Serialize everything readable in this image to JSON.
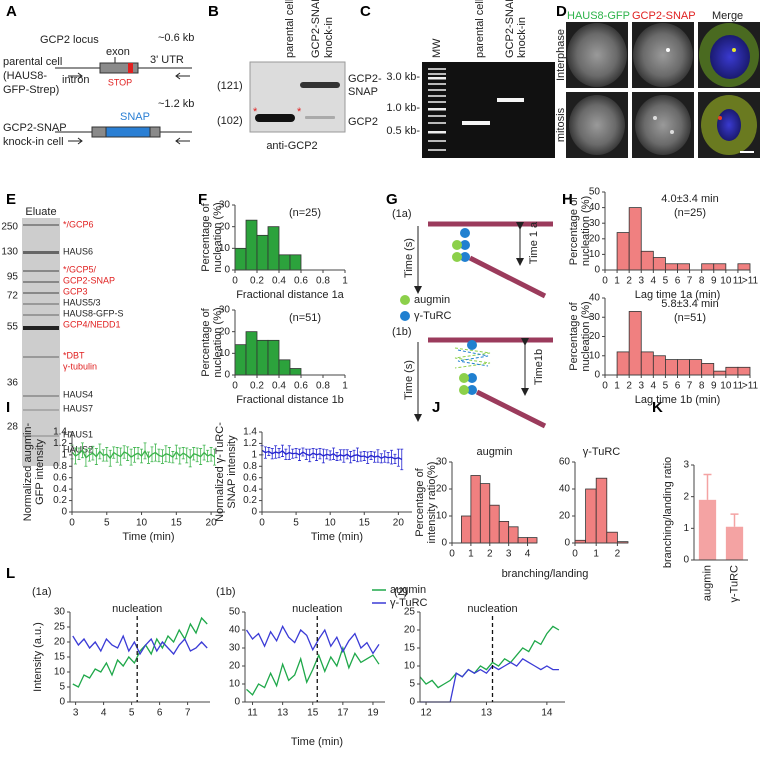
{
  "figure": {
    "panel_labels": [
      "A",
      "B",
      "C",
      "D",
      "E",
      "F",
      "G",
      "H",
      "I",
      "J",
      "K",
      "L"
    ],
    "A": {
      "locus": "GCP2 locus",
      "size1": "~0.6 kb",
      "exon": "exon",
      "parental": "parental cell",
      "parental_sub1": "(HAUS8-",
      "parental_sub2": "GFP-Strep)",
      "intron": "intron",
      "utr": "3' UTR",
      "stop": "STOP",
      "size2": "~1.2 kb",
      "snap": "SNAP",
      "knockin1": "GCP2-SNAP",
      "knockin2": "knock-in cell"
    },
    "B": {
      "lane1": "parental cell",
      "lane2_1": "GCP2-SNAP",
      "lane2_2": "knock-in",
      "mw_upper": "(121)",
      "mw_lower": "(102)",
      "band_upper_1": "GCP2-",
      "band_upper_2": "SNAP",
      "band_lower": "GCP2",
      "antibody": "anti-GCP2",
      "star": "*"
    },
    "C": {
      "mw": "MW",
      "lane1": "parental cell",
      "lane2_1": "GCP2-SNAP",
      "lane2_2": "knock-in",
      "markers": [
        "3.0 kb-",
        "1.0 kb-",
        "0.5 kb-"
      ]
    },
    "D": {
      "channels": [
        "HAUS8-GFP",
        "GCP2-SNAP",
        "Merge"
      ],
      "rows": [
        "Interphase",
        "mitosis"
      ]
    },
    "E": {
      "title": "Eluate",
      "markers": [
        "250",
        "130",
        "95",
        "72",
        "55",
        "36",
        "28"
      ],
      "bands": [
        {
          "text": "*/GCP6",
          "color": "#e02020"
        },
        {
          "text": "HAUS6",
          "color": "#222222"
        },
        {
          "text": "*/GCP5/",
          "color": "#e02020"
        },
        {
          "text": "GCP2-SNAP",
          "color": "#e02020"
        },
        {
          "text": "GCP3",
          "color": "#e02020"
        },
        {
          "text": "HAUS5/3",
          "color": "#222222"
        },
        {
          "text": "HAUS8-GFP-S",
          "color": "#222222"
        },
        {
          "text": "GCP4/NEDD1",
          "color": "#e02020"
        },
        {
          "text": "*DBT",
          "color": "#e02020"
        },
        {
          "text": "γ-tubulin",
          "color": "#e02020"
        },
        {
          "text": "HAUS4",
          "color": "#222222"
        },
        {
          "text": "HAUS7",
          "color": "#222222"
        },
        {
          "text": "HAUS1",
          "color": "#222222"
        },
        {
          "text": "HAUS2",
          "color": "#222222"
        }
      ]
    },
    "G": {
      "rows": [
        "(1a)",
        "(1b)"
      ],
      "time": "Time (s)",
      "time1a": "Time 1 a",
      "time1b": "Time1b",
      "legend": [
        "augmin",
        "γ-TuRC"
      ]
    }
  },
  "chart_data": [
    {
      "type": "histogram",
      "annotations": [
        "(n=25)"
      ],
      "xlabel": "Fractional distance 1a",
      "ylabel": [
        "Percentage of",
        "nucleation (%)"
      ],
      "bins": [
        0,
        0.1,
        0.2,
        0.3,
        0.4,
        0.5,
        0.6
      ],
      "counts": [
        10,
        23,
        16,
        20,
        7,
        7
      ],
      "color": "#2ca23c",
      "xlim": [
        0,
        1
      ],
      "xticks": [
        0,
        0.2,
        0.4,
        0.6,
        0.8,
        1
      ],
      "ylim": [
        0,
        30
      ],
      "yticks": [
        0,
        10,
        20,
        30
      ]
    },
    {
      "type": "histogram",
      "annotations": [
        "(n=51)"
      ],
      "xlabel": "Fractional distance 1b",
      "ylabel": [
        "Percentage of",
        "nucleation (%)"
      ],
      "bins": [
        0,
        0.1,
        0.2,
        0.3,
        0.4,
        0.5,
        0.6
      ],
      "counts": [
        14,
        20,
        16,
        16,
        7,
        3
      ],
      "color": "#2ca23c",
      "xlim": [
        0,
        1
      ],
      "xticks": [
        0,
        0.2,
        0.4,
        0.6,
        0.8,
        1
      ],
      "ylim": [
        0,
        30
      ],
      "yticks": [
        0,
        10,
        20,
        30
      ]
    },
    {
      "type": "histogram",
      "annotations": [
        "4.0±3.4 min",
        "(n=25)"
      ],
      "xlabel": "Lag time 1a (min)",
      "ylabel": [
        "Percentage of",
        "nucleation (%)"
      ],
      "bins": [
        0,
        1,
        2,
        3,
        4,
        5,
        6,
        7,
        8,
        9,
        10,
        11,
        12
      ],
      "counts": [
        0,
        24,
        40,
        12,
        8,
        4,
        4,
        0,
        4,
        4,
        0,
        4
      ],
      "color": "#f08080",
      "xlim": [
        0,
        12
      ],
      "xticks": [
        0,
        1,
        2,
        3,
        4,
        5,
        6,
        7,
        8,
        9,
        10,
        11,
        {
          "value": 12,
          "label": ">11"
        }
      ],
      "ylim": [
        0,
        50
      ],
      "yticks": [
        0,
        10,
        20,
        30,
        40,
        50
      ]
    },
    {
      "type": "histogram",
      "annotations": [
        "5.8±3.4 min",
        "(n=51)"
      ],
      "xlabel": "Lag time 1b (min)",
      "ylabel": [
        "Percentage of",
        "nucleation (%)"
      ],
      "bins": [
        0,
        1,
        2,
        3,
        4,
        5,
        6,
        7,
        8,
        9,
        10,
        11,
        12
      ],
      "counts": [
        0,
        12,
        33,
        12,
        10,
        8,
        8,
        8,
        6,
        2,
        4,
        4
      ],
      "color": "#f08080",
      "xlim": [
        0,
        12
      ],
      "xticks": [
        0,
        1,
        2,
        3,
        4,
        5,
        6,
        7,
        8,
        9,
        10,
        11,
        {
          "value": 12,
          "label": ">11"
        }
      ],
      "ylim": [
        0,
        40
      ],
      "yticks": [
        0,
        10,
        20,
        30,
        40
      ]
    },
    {
      "type": "line",
      "xlabel": "Time (min)",
      "ylabel": [
        "Normalized augmin-",
        "GFP intensity"
      ],
      "x": [
        0,
        0.5,
        1,
        1.5,
        2,
        2.5,
        3,
        3.5,
        4,
        4.5,
        5,
        5.5,
        6,
        6.5,
        7,
        7.5,
        8,
        8.5,
        9,
        9.5,
        10,
        10.5,
        11,
        11.5,
        12,
        12.5,
        13,
        13.5,
        14,
        14.5,
        15,
        15.5,
        16,
        16.5,
        17,
        17.5,
        18,
        18.5,
        19,
        19.5,
        20,
        20.5
      ],
      "series": [
        {
          "color": "#3cb44b",
          "values": [
            1.05,
            0.98,
            1.02,
            1.08,
            0.95,
            1.0,
            1.03,
            0.97,
            1.06,
            0.99,
            1.01,
            0.94,
            1.04,
            1.0,
            0.97,
            1.05,
            1.02,
            0.96,
            1.0,
            1.03,
            0.98,
            1.07,
            0.95,
            1.01,
            1.04,
            0.99,
            0.97,
            1.02,
            1.0,
            0.96,
            1.05,
            0.98,
            1.03,
            0.99,
            0.94,
            1.02,
            1.0,
            0.97,
            1.04,
            0.98,
            1.01,
            0.96
          ],
          "errors": [
            0.12,
            0.14,
            0.1,
            0.13,
            0.15,
            0.11,
            0.12,
            0.14,
            0.13,
            0.1,
            0.12,
            0.14,
            0.1,
            0.13,
            0.15,
            0.11,
            0.12,
            0.14,
            0.13,
            0.1,
            0.12,
            0.14,
            0.1,
            0.13,
            0.15,
            0.11,
            0.12,
            0.14,
            0.13,
            0.1,
            0.12,
            0.14,
            0.1,
            0.13,
            0.15,
            0.11,
            0.12,
            0.14,
            0.13,
            0.1,
            0.12,
            0.14
          ]
        }
      ],
      "xlim": [
        0,
        22
      ],
      "xticks": [
        0,
        5,
        10,
        15,
        20
      ],
      "ylim": [
        0,
        1.4
      ],
      "yticks": [
        0,
        0.2,
        0.4,
        0.6,
        0.8,
        1,
        1.2,
        1.4
      ]
    },
    {
      "type": "line",
      "xlabel": "Time (min)",
      "ylabel": [
        "Normalized γ-TuRC-",
        "SNAP intensity"
      ],
      "x": [
        0,
        0.5,
        1,
        1.5,
        2,
        2.5,
        3,
        3.5,
        4,
        4.5,
        5,
        5.5,
        6,
        6.5,
        7,
        7.5,
        8,
        8.5,
        9,
        9.5,
        10,
        10.5,
        11,
        11.5,
        12,
        12.5,
        13,
        13.5,
        14,
        14.5,
        15,
        15.5,
        16,
        16.5,
        17,
        17.5,
        18,
        18.5,
        19,
        19.5,
        20,
        20.5
      ],
      "series": [
        {
          "color": "#2424d0",
          "values": [
            1.08,
            1.04,
            1.06,
            1.02,
            1.05,
            1.03,
            1.07,
            1.01,
            1.04,
            1.02,
            1.03,
            1.0,
            1.05,
            1.01,
            0.99,
            1.03,
            1.0,
            1.02,
            0.98,
            1.01,
            0.99,
            1.02,
            0.97,
            1.0,
            0.98,
            1.01,
            0.96,
            0.99,
            1.0,
            0.97,
            0.98,
            0.95,
            0.99,
            0.96,
            0.98,
            0.94,
            0.97,
            0.95,
            0.96,
            0.93,
            0.95,
            0.92
          ],
          "errors": [
            0.08,
            0.1,
            0.07,
            0.09,
            0.11,
            0.08,
            0.1,
            0.09,
            0.12,
            0.08,
            0.08,
            0.1,
            0.07,
            0.09,
            0.11,
            0.08,
            0.1,
            0.09,
            0.12,
            0.08,
            0.08,
            0.1,
            0.07,
            0.09,
            0.11,
            0.08,
            0.1,
            0.09,
            0.12,
            0.08,
            0.08,
            0.1,
            0.07,
            0.09,
            0.11,
            0.08,
            0.1,
            0.09,
            0.12,
            0.08,
            0.15,
            0.18
          ]
        }
      ],
      "xlim": [
        0,
        22
      ],
      "xticks": [
        0,
        5,
        10,
        15,
        20
      ],
      "ylim": [
        0,
        1.4
      ],
      "yticks": [
        0,
        0.2,
        0.4,
        0.6,
        0.8,
        1,
        1.2,
        1.4
      ]
    },
    {
      "type": "histogram",
      "title": "augmin",
      "xlabel": "branching/landing",
      "ylabel": [
        "Percentage of",
        "intensity ratio(%)"
      ],
      "bins": [
        0,
        0.5,
        1,
        1.5,
        2,
        2.5,
        3,
        3.5,
        4,
        4.5
      ],
      "counts": [
        0,
        10,
        25,
        22,
        14,
        8,
        6,
        2,
        2
      ],
      "color": "#f08080",
      "xlim": [
        0,
        4.5
      ],
      "xticks": [
        0,
        1,
        2,
        3,
        4
      ],
      "ylim": [
        0,
        30
      ],
      "yticks": [
        0,
        10,
        20,
        30
      ]
    },
    {
      "type": "histogram",
      "title": "γ-TuRC",
      "bins": [
        0,
        0.5,
        1,
        1.5,
        2,
        2.5
      ],
      "counts": [
        2,
        40,
        48,
        8,
        1
      ],
      "color": "#f08080",
      "xlim": [
        0,
        2.5
      ],
      "xticks": [
        0,
        1,
        2
      ],
      "ylim": [
        0,
        60
      ],
      "yticks": [
        0,
        20,
        40,
        60
      ]
    },
    {
      "type": "bar",
      "ylabel": [
        "branching/landing ratio"
      ],
      "categories": [
        "augmin",
        "γ-TuRC"
      ],
      "values": [
        1.9,
        1.05
      ],
      "errors": [
        0.8,
        0.4
      ],
      "color": "#f4a3a3",
      "ylim": [
        0,
        3
      ],
      "yticks": [
        0,
        1,
        2,
        3
      ]
    },
    {
      "type": "line",
      "subtitle": "(1a)",
      "ylabel": [
        "Intensity (a.u.)"
      ],
      "x": [
        2.9,
        3.1,
        3.3,
        3.5,
        3.7,
        3.9,
        4.1,
        4.3,
        4.5,
        4.7,
        4.9,
        5.1,
        5.3,
        5.5,
        5.7,
        5.9,
        6.1,
        6.3,
        6.5,
        6.7,
        6.9,
        7.1,
        7.3,
        7.5,
        7.7
      ],
      "series": [
        {
          "color": "#1fa84a",
          "values": [
            6,
            5,
            9,
            8,
            11,
            10,
            13,
            9,
            14,
            12,
            15,
            13,
            17,
            19,
            16,
            21,
            18,
            22,
            20,
            24,
            21,
            26,
            23,
            28,
            26
          ]
        },
        {
          "color": "#3b3bd6",
          "values": [
            22,
            19,
            21,
            18,
            20,
            17,
            21,
            19,
            18,
            22,
            17,
            20,
            16,
            19,
            21,
            17,
            20,
            18,
            16,
            19,
            21,
            17,
            18,
            20,
            18
          ]
        }
      ],
      "nucleation": {
        "text": "nucleation",
        "x": 5.2
      },
      "xlim": [
        2.8,
        7.8
      ],
      "xticks": [
        3,
        4,
        5,
        6,
        7
      ],
      "ylim": [
        0,
        30
      ],
      "yticks": [
        0,
        5,
        10,
        15,
        20,
        25,
        30
      ]
    },
    {
      "type": "line",
      "subtitle": "(1b)",
      "xlabel": "Time (min)",
      "x": [
        10.6,
        11.0,
        11.4,
        11.8,
        12.2,
        12.6,
        13.0,
        13.4,
        13.8,
        14.2,
        14.6,
        15.0,
        15.4,
        15.8,
        16.2,
        16.6,
        17.0,
        17.4,
        17.8,
        18.2,
        18.6,
        19.0,
        19.4
      ],
      "series": [
        {
          "color": "#1fa84a",
          "values": [
            7,
            4,
            10,
            8,
            16,
            9,
            21,
            12,
            15,
            24,
            11,
            18,
            26,
            17,
            25,
            20,
            30,
            19,
            27,
            22,
            24,
            26,
            21
          ]
        },
        {
          "color": "#3b3bd6",
          "values": [
            40,
            35,
            38,
            31,
            39,
            34,
            42,
            36,
            33,
            40,
            37,
            29,
            35,
            40,
            31,
            36,
            28,
            34,
            38,
            30,
            33,
            27,
            32
          ]
        }
      ],
      "nucleation": {
        "text": "nucleation",
        "x": 15.3
      },
      "xlim": [
        10.5,
        19.8
      ],
      "xticks": [
        11,
        13,
        15,
        17,
        19
      ],
      "ylim": [
        0,
        50
      ],
      "yticks": [
        0,
        10,
        20,
        30,
        40,
        50
      ]
    },
    {
      "type": "line",
      "subtitle": "(2)",
      "legend": "top-left",
      "x": [
        11.9,
        12.0,
        12.1,
        12.2,
        12.3,
        12.4,
        12.5,
        12.6,
        12.7,
        12.8,
        12.9,
        13.0,
        13.1,
        13.2,
        13.3,
        13.4,
        13.5,
        13.6,
        13.7,
        13.8,
        13.9,
        14.0,
        14.1,
        14.2
      ],
      "series": [
        {
          "name": "augmin",
          "color": "#1fa84a",
          "values": [
            7,
            5,
            6,
            4,
            5,
            6,
            8,
            7,
            9,
            8,
            10,
            9,
            11,
            10,
            12,
            11,
            13,
            15,
            14,
            17,
            16,
            19,
            21,
            20
          ]
        },
        {
          "name": "γ-TuRC",
          "color": "#3b3bd6",
          "values": [
            0,
            0,
            0,
            0,
            0,
            0,
            8,
            7,
            9,
            8,
            9,
            8,
            10,
            9,
            10,
            11,
            10,
            12,
            11,
            10,
            9,
            10,
            9,
            9
          ]
        }
      ],
      "nucleation": {
        "text": "nucleation",
        "x": 13.1
      },
      "xlim": [
        11.9,
        14.3
      ],
      "xticks": [
        12,
        13,
        14
      ],
      "ylim": [
        0,
        25
      ],
      "yticks": [
        0,
        5,
        10,
        15,
        20,
        25
      ]
    }
  ]
}
